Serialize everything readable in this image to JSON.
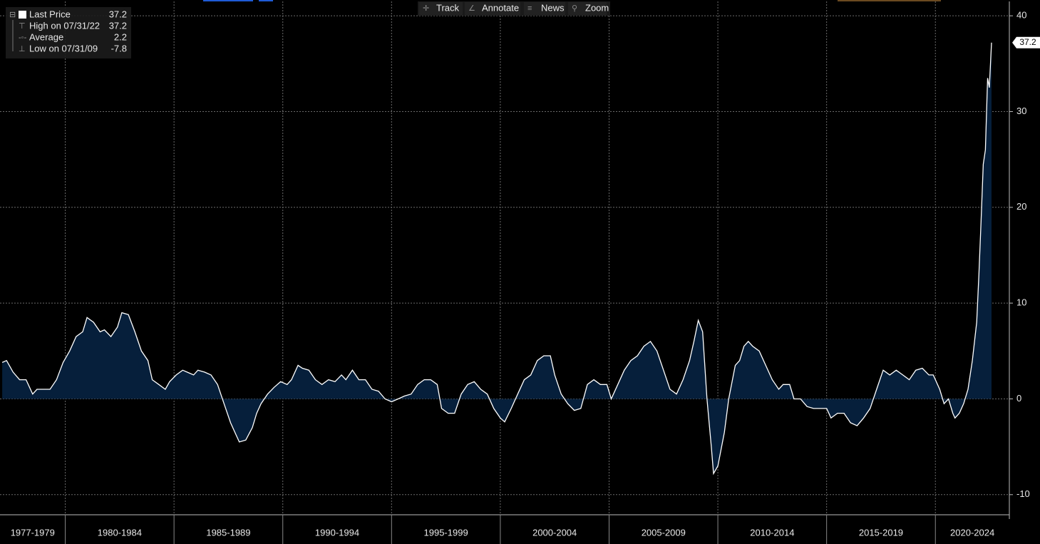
{
  "chart_data": {
    "type": "area",
    "toolbar": [
      "Track",
      "Annotate",
      "News",
      "Zoom"
    ],
    "legend": [
      {
        "label": "Last Price",
        "value": 37.2
      },
      {
        "label": "High on 07/31/22",
        "value": 37.2
      },
      {
        "label": "Average",
        "value": 2.2
      },
      {
        "label": "Low on 07/31/09",
        "value": -7.8
      }
    ],
    "x_periods": [
      "1977-1979",
      "1980-1984",
      "1985-1989",
      "1990-1994",
      "1995-1999",
      "2000-2004",
      "2005-2009",
      "2010-2014",
      "2015-2019",
      "2020-2024"
    ],
    "x_period_bounds": [
      1977,
      1980,
      1985,
      1990,
      1995,
      2000,
      2005,
      2010,
      2015,
      2020
    ],
    "xlim": [
      1977,
      2023.4
    ],
    "ylim": [
      -12.1,
      41.5
    ],
    "yticks": [
      -10,
      0,
      10,
      20,
      30,
      40
    ],
    "grid": true,
    "line_color": "#ffffff",
    "fill_color": "#061f3b",
    "x": [
      1977.1,
      1977.3,
      1977.6,
      1977.9,
      1978.2,
      1978.5,
      1978.7,
      1979.0,
      1979.3,
      1979.6,
      1979.9,
      1980.2,
      1980.5,
      1980.8,
      1981.0,
      1981.3,
      1981.6,
      1981.8,
      1982.1,
      1982.4,
      1982.6,
      1982.9,
      1983.2,
      1983.5,
      1983.8,
      1984.0,
      1984.3,
      1984.6,
      1984.8,
      1985.1,
      1985.4,
      1985.6,
      1985.9,
      1986.1,
      1986.4,
      1986.7,
      1987.0,
      1987.3,
      1987.6,
      1987.8,
      1988.0,
      1988.3,
      1988.6,
      1988.8,
      1989.0,
      1989.3,
      1989.6,
      1989.9,
      1990.2,
      1990.4,
      1990.7,
      1990.9,
      1991.2,
      1991.5,
      1991.8,
      1992.1,
      1992.4,
      1992.7,
      1992.9,
      1993.2,
      1993.5,
      1993.8,
      1994.1,
      1994.4,
      1994.7,
      1995.0,
      1995.3,
      1995.6,
      1995.9,
      1996.2,
      1996.5,
      1996.8,
      1997.1,
      1997.3,
      1997.6,
      1997.9,
      1998.2,
      1998.5,
      1998.8,
      1999.1,
      1999.4,
      1999.7,
      2000.0,
      2000.2,
      2000.5,
      2000.8,
      2001.1,
      2001.4,
      2001.7,
      2002.0,
      2002.3,
      2002.5,
      2002.8,
      2003.1,
      2003.4,
      2003.7,
      2004.0,
      2004.3,
      2004.6,
      2004.9,
      2005.1,
      2005.4,
      2005.7,
      2006.0,
      2006.3,
      2006.6,
      2006.9,
      2007.2,
      2007.5,
      2007.8,
      2008.1,
      2008.4,
      2008.7,
      2008.9,
      2009.1,
      2009.3,
      2009.5,
      2009.7,
      2009.8,
      2010.0,
      2010.3,
      2010.5,
      2010.8,
      2011.0,
      2011.2,
      2011.4,
      2011.6,
      2011.9,
      2012.2,
      2012.5,
      2012.8,
      2013.0,
      2013.3,
      2013.5,
      2013.8,
      2014.1,
      2014.4,
      2014.7,
      2015.0,
      2015.2,
      2015.5,
      2015.8,
      2016.1,
      2016.4,
      2016.7,
      2017.0,
      2017.3,
      2017.6,
      2017.9,
      2018.2,
      2018.5,
      2018.8,
      2019.1,
      2019.4,
      2019.7,
      2019.9,
      2020.2,
      2020.4,
      2020.6,
      2020.8,
      2020.9,
      2021.1,
      2021.3,
      2021.5,
      2021.7,
      2021.9,
      2022.0,
      2022.1,
      2022.2,
      2022.3,
      2022.4,
      2022.48,
      2022.58
    ],
    "values": [
      3.8,
      4.0,
      2.8,
      2.0,
      2.0,
      0.5,
      1.0,
      1.0,
      1.0,
      2.0,
      3.8,
      5.0,
      6.5,
      7.0,
      8.5,
      8.0,
      7.0,
      7.2,
      6.5,
      7.5,
      9.0,
      8.8,
      7.0,
      5.0,
      4.0,
      2.0,
      1.5,
      1.0,
      1.8,
      2.5,
      3.0,
      2.8,
      2.5,
      3.0,
      2.8,
      2.5,
      1.5,
      -0.5,
      -2.5,
      -3.5,
      -4.5,
      -4.3,
      -3.0,
      -1.5,
      -0.5,
      0.5,
      1.2,
      1.8,
      1.5,
      2.0,
      3.5,
      3.2,
      3.0,
      2.0,
      1.5,
      2.0,
      1.8,
      2.5,
      2.0,
      3.0,
      2.0,
      2.0,
      1.0,
      0.8,
      0.0,
      -0.3,
      0.0,
      0.3,
      0.5,
      1.5,
      2.0,
      2.0,
      1.5,
      -1.0,
      -1.5,
      -1.5,
      0.5,
      1.5,
      1.8,
      1.0,
      0.5,
      -1.0,
      -2.0,
      -2.4,
      -1.0,
      0.5,
      2.0,
      2.5,
      4.0,
      4.5,
      4.5,
      2.5,
      0.5,
      -0.5,
      -1.2,
      -1.0,
      1.5,
      2.0,
      1.5,
      1.5,
      0.0,
      1.5,
      3.0,
      4.0,
      4.5,
      5.5,
      6.0,
      5.0,
      3.0,
      1.0,
      0.5,
      2.0,
      4.0,
      6.0,
      8.2,
      7.0,
      0.0,
      -5.0,
      -7.8,
      -7.0,
      -3.5,
      0.0,
      3.5,
      4.0,
      5.5,
      6.0,
      5.5,
      5.0,
      3.5,
      2.0,
      1.0,
      1.5,
      1.5,
      0.0,
      0.0,
      -0.8,
      -1.0,
      -1.0,
      -1.0,
      -2.0,
      -1.5,
      -1.5,
      -2.5,
      -2.8,
      -2.0,
      -1.0,
      1.0,
      3.0,
      2.5,
      3.0,
      2.5,
      2.0,
      3.0,
      3.2,
      2.5,
      2.5,
      1.0,
      -0.5,
      0.0,
      -1.5,
      -2.0,
      -1.5,
      -0.5,
      1.0,
      4.0,
      8.0,
      13.0,
      18.5,
      24.5,
      26.0,
      33.5,
      32.5,
      37.2
    ]
  }
}
